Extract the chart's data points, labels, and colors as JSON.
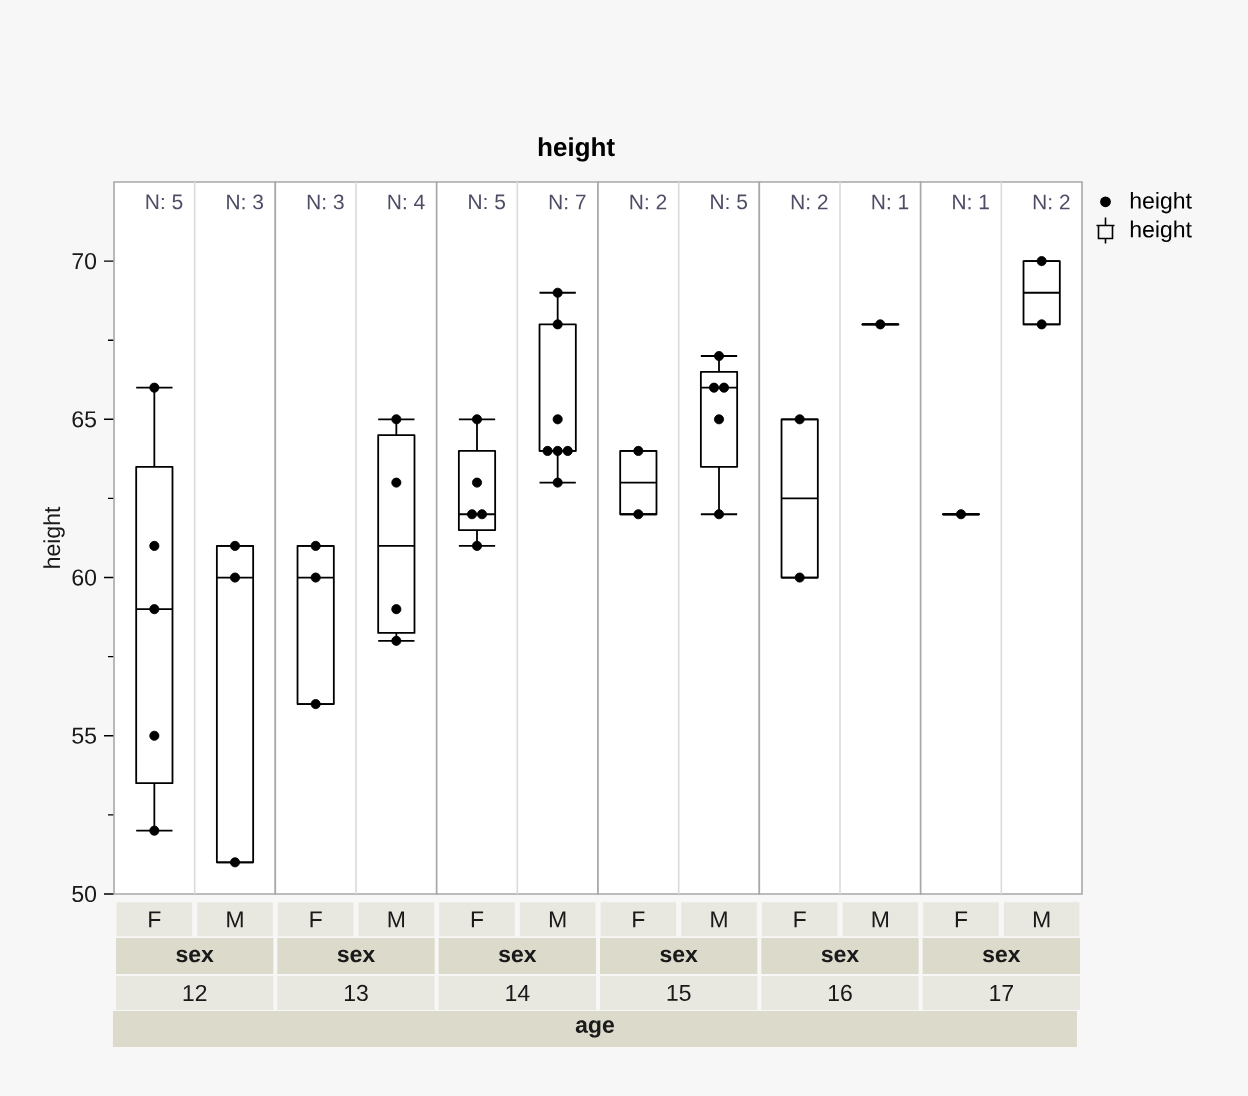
{
  "chart_data": [
    {
      "type": "box",
      "ylabel": "height",
      "xlabel": "sex",
      "categories": [
        "F",
        "M"
      ],
      "ylim": [
        50,
        72.5
      ],
      "yticks": [
        50,
        {
          "value": 52.5,
          "label": null
        },
        55,
        {
          "value": 57.5,
          "label": null
        },
        60,
        {
          "value": 62.5,
          "label": null
        },
        65,
        {
          "value": 67.5,
          "label": null
        },
        70
      ],
      "marker": "circle",
      "series": [
        {
          "type": "scatter",
          "color": "#000000",
          "x": [
            "F",
            "F",
            "F",
            "F",
            "F",
            "M",
            "M",
            "M"
          ],
          "values": [
            52,
            55,
            59,
            61,
            66,
            51,
            60,
            61
          ]
        },
        {
          "color": "#000000",
          "boxes": [
            {
              "low": 52,
              "q1": 53.5,
              "median": 59,
              "q3": 63.5,
              "high": 66
            },
            {
              "low": 51,
              "q1": 51,
              "median": 60,
              "q3": 61,
              "high": 61
            }
          ]
        }
      ],
      "annotations": [
        "N: 5",
        "N: 3",
        "12"
      ]
    },
    {
      "type": "box",
      "xlabel": "sex",
      "categories": [
        "F",
        "M"
      ],
      "ylim": [
        50,
        72.5
      ],
      "tick_labels": "x",
      "marker": "circle",
      "series": [
        {
          "type": "scatter",
          "color": "#000000",
          "x": [
            "F",
            "F",
            "F",
            "M",
            "M",
            "M",
            "M"
          ],
          "values": [
            56,
            60,
            61,
            58,
            59,
            63,
            65
          ]
        },
        {
          "color": "#000000",
          "boxes": [
            {
              "low": 56,
              "q1": 56,
              "median": 60,
              "q3": 61,
              "high": 61
            },
            {
              "low": 58,
              "q1": 58.25,
              "median": 61,
              "q3": 64.5,
              "high": 65
            }
          ]
        }
      ],
      "annotations": [
        "N: 3",
        "N: 4",
        "13"
      ]
    },
    {
      "type": "box",
      "title": "height",
      "xlabel": "sex",
      "categories": [
        "F",
        "M"
      ],
      "ylim": [
        50,
        72.5
      ],
      "tick_labels": "x",
      "marker": "circle",
      "series": [
        {
          "type": "scatter",
          "color": "#000000",
          "x": [
            "F",
            "F",
            "F",
            "F",
            "F",
            "M",
            "M",
            "M",
            "M",
            "M",
            "M",
            "M"
          ],
          "values": [
            61,
            62,
            62,
            63,
            65,
            63,
            64,
            64,
            64,
            65,
            68,
            69
          ]
        },
        {
          "color": "#000000",
          "boxes": [
            {
              "low": 61,
              "q1": 61.5,
              "median": 62,
              "q3": 64,
              "high": 65
            },
            {
              "low": 63,
              "q1": 64,
              "median": 64,
              "q3": 68,
              "high": 69
            }
          ]
        }
      ],
      "annotations": [
        "N: 5",
        "N: 7",
        "14",
        "age"
      ]
    },
    {
      "type": "box",
      "xlabel": "sex",
      "categories": [
        "F",
        "M"
      ],
      "ylim": [
        50,
        72.5
      ],
      "tick_labels": "x",
      "marker": "circle",
      "series": [
        {
          "type": "scatter",
          "color": "#000000",
          "x": [
            "F",
            "F",
            "M",
            "M",
            "M",
            "M",
            "M"
          ],
          "values": [
            62,
            64,
            62,
            65,
            66,
            66,
            67
          ]
        },
        {
          "color": "#000000",
          "boxes": [
            {
              "low": 62,
              "q1": 62,
              "median": 63,
              "q3": 64,
              "high": 64
            },
            {
              "low": 62,
              "q1": 63.5,
              "median": 66,
              "q3": 66.5,
              "high": 67
            }
          ]
        }
      ],
      "annotations": [
        "N: 2",
        "N: 5",
        "15"
      ]
    },
    {
      "type": "box",
      "xlabel": "sex",
      "categories": [
        "F",
        "M"
      ],
      "ylim": [
        50,
        72.5
      ],
      "tick_labels": "x",
      "marker": "circle",
      "series": [
        {
          "type": "scatter",
          "color": "#000000",
          "x": [
            "F",
            "F",
            "M"
          ],
          "values": [
            60,
            65,
            68
          ]
        },
        {
          "color": "#000000",
          "boxes": [
            {
              "low": 60,
              "q1": 60,
              "median": 62.5,
              "q3": 65,
              "high": 65
            },
            {
              "low": 68,
              "q1": 68,
              "median": 68,
              "q3": 68,
              "high": 68
            }
          ]
        }
      ],
      "annotations": [
        "N: 2",
        "N: 1",
        "16"
      ]
    },
    {
      "type": "box",
      "xlabel": "sex",
      "categories": [
        "F",
        "M"
      ],
      "ylim": [
        50,
        72.5
      ],
      "tick_labels": "x",
      "marker": "circle",
      "legend": "top right",
      "series": [
        {
          "name": "height",
          "type": "scatter",
          "color": "#000000",
          "x": [
            "F",
            "M",
            "M"
          ],
          "values": [
            62,
            68,
            70
          ]
        },
        {
          "name": "height",
          "color": "#000000",
          "boxes": [
            {
              "low": 62,
              "q1": 62,
              "median": 62,
              "q3": 62,
              "high": 62
            },
            {
              "low": 68,
              "q1": 68,
              "median": 69,
              "q3": 70,
              "high": 70
            }
          ]
        }
      ],
      "annotations": [
        "N: 1",
        "N: 2",
        "17"
      ]
    }
  ]
}
